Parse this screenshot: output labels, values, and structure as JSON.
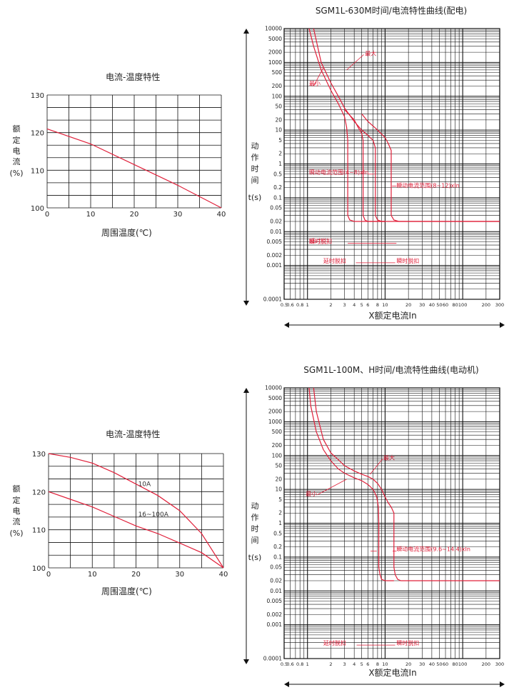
{
  "chart_data": [
    {
      "type": "line",
      "title": "电流-温度特性",
      "xlabel": "周围温度(℃)",
      "ylabel_chars": [
        "额",
        "定",
        "电",
        "流",
        "(%)"
      ],
      "xlim": [
        0,
        40
      ],
      "ylim": [
        100,
        130
      ],
      "x_ticks": [
        "0",
        "10",
        "20",
        "30",
        "40"
      ],
      "y_ticks": [
        "100",
        "110",
        "120",
        "130"
      ],
      "grid": true,
      "series": [
        {
          "name": "",
          "color": "#e0203a",
          "x": [
            0,
            10,
            20,
            30,
            40
          ],
          "y": [
            121,
            117,
            111.5,
            106,
            100
          ]
        }
      ],
      "labels": []
    },
    {
      "type": "line",
      "title": "SGM1L-630M时间/电流特性曲线(配电)",
      "xlabel": "X额定电流In",
      "ylabel_chars": [
        "动",
        "作",
        "时",
        "间",
        "t(s)"
      ],
      "log_x": true,
      "log_y": true,
      "xlim": [
        0.5,
        300
      ],
      "ylim": [
        0.0001,
        10000
      ],
      "x_ticks": [
        "0.5",
        "0.6",
        "0.8",
        "1",
        "2",
        "3",
        "4",
        "5",
        "6",
        "8",
        "10",
        "20",
        "30",
        "40",
        "50",
        "60",
        "80",
        "100",
        "200",
        "300"
      ],
      "y_ticks": [
        "10000",
        "5000",
        "2000",
        "1000",
        "500",
        "200",
        "100",
        "50",
        "20",
        "10",
        "5",
        "2",
        "1",
        "0.5",
        "0.2",
        "0.1",
        "0.05",
        "0.02",
        "0.01",
        "0.005",
        "0.002",
        "0.001",
        "0.0001"
      ],
      "grid": true,
      "series": [
        {
          "name": "最小",
          "color": "#e0203a",
          "x": [
            1.05,
            1.2,
            1.5,
            2,
            2.5,
            3,
            3.2,
            3.3,
            3.3,
            3.5,
            4,
            5,
            8,
            10,
            20,
            50,
            100,
            300
          ],
          "y": [
            10000,
            3000,
            600,
            150,
            60,
            25,
            12,
            5,
            0.03,
            0.022,
            0.02,
            0.02,
            0.02,
            0.02,
            0.02,
            0.02,
            0.02,
            0.02
          ]
        },
        {
          "name": "最小",
          "color": "#e0203a",
          "x": [
            3,
            4,
            4.5,
            5,
            5.2,
            5.2,
            5.5,
            6,
            7,
            8,
            10
          ],
          "y": [
            40,
            20,
            12,
            8,
            5,
            0.03,
            0.022,
            0.02,
            0.02,
            0.02,
            0.02
          ]
        },
        {
          "name": "最大",
          "color": "#e0203a",
          "x": [
            1.2,
            1.5,
            2,
            2.5,
            3,
            4,
            5,
            6,
            7,
            7.5,
            7.5,
            8,
            9,
            10
          ],
          "y": [
            10000,
            1000,
            250,
            100,
            45,
            18,
            10,
            7,
            5,
            3,
            0.03,
            0.022,
            0.02,
            0.02
          ]
        },
        {
          "name": "最大",
          "color": "#e0203a",
          "x": [
            5,
            6,
            8,
            10,
            11,
            12,
            12,
            13,
            15,
            20,
            50,
            100,
            300
          ],
          "y": [
            30,
            18,
            10,
            6,
            4,
            2.5,
            0.03,
            0.022,
            0.02,
            0.02,
            0.02,
            0.02,
            0.02
          ]
        }
      ],
      "labels": [
        {
          "text": "最大",
          "x": 5.5,
          "y": 1600,
          "color": "#e0203a"
        },
        {
          "text": "最小",
          "x": 1.05,
          "y": 210,
          "color": "#e0203a"
        },
        {
          "text": "瞬动电流范围(4~8)xIn",
          "x": 1.05,
          "y": 0.5,
          "color": "#e0203a"
        },
        {
          "text": "瞬动电流范围(8~12)xIn",
          "x": 14,
          "y": 0.2,
          "color": "#e0203a"
        },
        {
          "text": "延时脱扣",
          "x": 1.05,
          "y": 0.0045,
          "color": "#e0203a"
        },
        {
          "text": "瞬时脱扣",
          "x": 1.05,
          "y": 0.0045,
          "color": "#e0203a"
        },
        {
          "text": "延时脱扣",
          "x": 1.6,
          "y": 0.0012,
          "color": "#e0203a"
        },
        {
          "text": "瞬时脱扣",
          "x": 14,
          "y": 0.0012,
          "color": "#e0203a"
        }
      ]
    },
    {
      "type": "line",
      "title": "电流-温度特性",
      "xlabel": "周围温度(℃)",
      "ylabel_chars": [
        "额",
        "定",
        "电",
        "流",
        "(%)"
      ],
      "xlim": [
        0,
        40
      ],
      "ylim": [
        100,
        130
      ],
      "x_ticks": [
        "0",
        "10",
        "20",
        "30",
        "40"
      ],
      "y_ticks": [
        "100",
        "110",
        "120",
        "130"
      ],
      "grid": true,
      "series": [
        {
          "name": "10A",
          "color": "#e0203a",
          "x": [
            0,
            5,
            10,
            15,
            20,
            25,
            30,
            35,
            40
          ],
          "y": [
            130,
            129,
            127.5,
            125,
            122,
            119,
            115,
            109,
            100
          ]
        },
        {
          "name": "16~100A",
          "color": "#e0203a",
          "x": [
            0,
            5,
            10,
            15,
            20,
            25,
            30,
            35,
            40
          ],
          "y": [
            120,
            118,
            116,
            113.5,
            111,
            109,
            106.5,
            104,
            100
          ]
        }
      ],
      "labels": [
        {
          "text": "10A",
          "x": 20.5,
          "y": 121.5,
          "color": "#333333"
        },
        {
          "text": "16~100A",
          "x": 20.5,
          "y": 113.5,
          "color": "#333333"
        }
      ]
    },
    {
      "type": "line",
      "title": "SGM1L-100M、H时间/电流特性曲线(电动机)",
      "xlabel": "X额定电流In",
      "ylabel_chars": [
        "动",
        "作",
        "时",
        "间",
        "t(s)"
      ],
      "log_x": true,
      "log_y": true,
      "xlim": [
        0.5,
        300
      ],
      "ylim": [
        0.0001,
        10000
      ],
      "x_ticks": [
        "0.5",
        "0.6",
        "0.8",
        "1",
        "2",
        "3",
        "4",
        "5",
        "6",
        "8",
        "10",
        "20",
        "30",
        "40",
        "50",
        "60",
        "80",
        "100",
        "200",
        "300"
      ],
      "y_ticks": [
        "10000",
        "5000",
        "2000",
        "1000",
        "500",
        "200",
        "100",
        "50",
        "20",
        "10",
        "5",
        "2",
        "1",
        "0.5",
        "0.2",
        "0.1",
        "0.05",
        "0.02",
        "0.01",
        "0.005",
        "0.002",
        "0.001",
        "0.0001"
      ],
      "grid": true,
      "series": [
        {
          "name": "最小",
          "color": "#e0203a",
          "x": [
            1.05,
            1.1,
            1.3,
            1.6,
            2,
            2.5,
            3,
            4,
            5,
            6,
            7,
            7.8,
            8.2,
            8.3,
            8.3,
            8.6,
            9,
            10,
            13
          ],
          "y": [
            10000,
            3000,
            500,
            150,
            70,
            40,
            30,
            22,
            18,
            14,
            10,
            6,
            3,
            1,
            0.05,
            0.03,
            0.022,
            0.02,
            0.02
          ]
        },
        {
          "name": "最大",
          "color": "#e0203a",
          "x": [
            1.2,
            1.3,
            1.6,
            2,
            2.5,
            3,
            4,
            5,
            6,
            7,
            8,
            9,
            10,
            11,
            12,
            13,
            13,
            13.5,
            14.5,
            16,
            50,
            100,
            300
          ],
          "y": [
            10000,
            2000,
            300,
            120,
            75,
            50,
            35,
            28,
            24,
            20,
            15,
            10,
            6,
            4,
            3,
            2,
            0.05,
            0.03,
            0.022,
            0.02,
            0.02,
            0.02,
            0.02
          ]
        }
      ],
      "labels": [
        {
          "text": "最大",
          "x": 9.5,
          "y": 75,
          "color": "#e0203a"
        },
        {
          "text": "最小",
          "x": 0.95,
          "y": 6.5,
          "color": "#e0203a"
        },
        {
          "text": "瞬动电流范围(9.6~14.4)xIn",
          "x": 14,
          "y": 0.15,
          "color": "#e0203a"
        },
        {
          "text": "延时脱扣",
          "x": 1.6,
          "y": 0.00025,
          "color": "#e0203a"
        },
        {
          "text": "瞬时脱扣",
          "x": 14,
          "y": 0.00025,
          "color": "#e0203a"
        }
      ]
    }
  ]
}
